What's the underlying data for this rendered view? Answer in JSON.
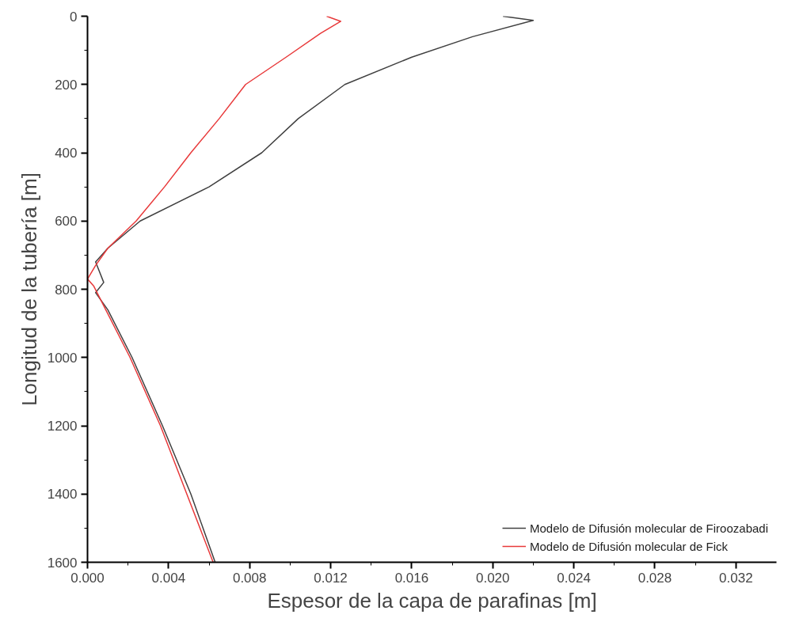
{
  "chart_data": {
    "type": "line",
    "xlabel": "Espesor de la capa de parafinas [m]",
    "ylabel": "Longitud de la tubería [m]",
    "xlim": [
      0,
      0.034
    ],
    "xticks": [
      {
        "value": 0,
        "label": "0.000"
      },
      {
        "value": 0.004,
        "label": "0.004"
      },
      {
        "value": 0.008,
        "label": "0.008"
      },
      {
        "value": 0.012,
        "label": "0.012"
      },
      {
        "value": 0.016,
        "label": "0.016"
      },
      {
        "value": 0.02,
        "label": "0.020"
      },
      {
        "value": 0.024,
        "label": "0.024"
      },
      {
        "value": 0.028,
        "label": "0.028"
      },
      {
        "value": 0.032,
        "label": "0.032"
      }
    ],
    "ylim": [
      1600,
      0
    ],
    "yticks": [
      0,
      200,
      400,
      600,
      800,
      1000,
      1200,
      1400,
      1600
    ],
    "grid": false,
    "legend": "bottom right",
    "marker": "none",
    "line_style": "solid",
    "series": [
      {
        "name": "Modelo de Difusión molecular de Firoozabadi",
        "color": "#404040",
        "x": [
          0.0205,
          0.022,
          0.019,
          0.016,
          0.0127,
          0.0104,
          0.0086,
          0.006,
          0.0026,
          0.001,
          0.0004,
          0.0008,
          0.0004,
          0.001,
          0.0022,
          0.0037,
          0.0051,
          0.0063
        ],
        "values": [
          0,
          12,
          60,
          120,
          200,
          300,
          400,
          500,
          600,
          680,
          720,
          780,
          810,
          860,
          1000,
          1200,
          1400,
          1600
        ]
      },
      {
        "name": "Modelo de Difusión molecular de Fick",
        "color": "#e8393a",
        "x": [
          0.0118,
          0.0125,
          0.0115,
          0.0098,
          0.0078,
          0.0065,
          0.0051,
          0.0038,
          0.0024,
          0.001,
          0.0004,
          0.0,
          0.0003,
          0.0009,
          0.0021,
          0.0036,
          0.0049,
          0.0062
        ],
        "values": [
          0,
          15,
          50,
          120,
          200,
          300,
          400,
          500,
          600,
          680,
          730,
          770,
          790,
          860,
          1000,
          1200,
          1400,
          1600
        ]
      }
    ]
  }
}
